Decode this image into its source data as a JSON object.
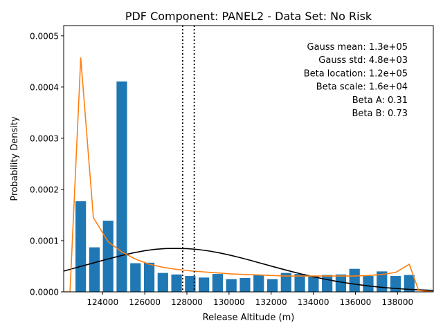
{
  "chart_data": {
    "type": "bar",
    "title": "PDF Component: PANEL2 - Data Set: No Risk",
    "xlabel": "Release Altitude (m)",
    "ylabel": "Probability Density",
    "xlim": [
      122150,
      139700
    ],
    "ylim": [
      0,
      0.00052
    ],
    "x_ticks": [
      124000,
      126000,
      128000,
      130000,
      132000,
      134000,
      136000,
      138000
    ],
    "x_tick_labels": [
      "124000",
      "126000",
      "128000",
      "130000",
      "132000",
      "134000",
      "136000",
      "138000"
    ],
    "y_ticks": [
      0,
      0.0001,
      0.0002,
      0.0003,
      0.0004,
      0.0005
    ],
    "y_tick_labels": [
      "0.0000",
      "0.0001",
      "0.0002",
      "0.0003",
      "0.0004",
      "0.0005"
    ],
    "grid": false,
    "bar_width": 500,
    "bars": {
      "x": [
        122960,
        123610,
        124260,
        124910,
        125560,
        126210,
        126860,
        127510,
        128160,
        128810,
        129460,
        130110,
        130760,
        131410,
        132060,
        132710,
        133360,
        134010,
        134660,
        135310,
        135960,
        136610,
        137260,
        137910,
        138560
      ],
      "values": [
        0.000177,
        8.7e-05,
        0.000139,
        0.000411,
        5.6e-05,
        5.7e-05,
        3.7e-05,
        3.4e-05,
        3.1e-05,
        2.8e-05,
        3.5e-05,
        2.5e-05,
        2.7e-05,
        3.3e-05,
        2.5e-05,
        3.7e-05,
        3.5e-05,
        3.1e-05,
        3.3e-05,
        3.4e-05,
        4.5e-05,
        3.1e-05,
        4e-05,
        3.1e-05,
        3.3e-05
      ],
      "color": "#1f77b4"
    },
    "series": [
      {
        "kind": "gauss",
        "color": "#000000",
        "x": [
          122150,
          122500,
          123000,
          123500,
          124000,
          124500,
          125000,
          125500,
          126000,
          126500,
          127000,
          127500,
          128000,
          128500,
          129000,
          129500,
          130000,
          130500,
          131000,
          131500,
          132000,
          132500,
          133000,
          133500,
          134000,
          134500,
          135000,
          135500,
          136000,
          136500,
          137000,
          137500,
          138000,
          138500,
          139000,
          139700
        ],
        "values": [
          4.05e-05,
          4.46e-05,
          5.02e-05,
          5.58e-05,
          6.14e-05,
          6.69e-05,
          7.2e-05,
          7.66e-05,
          8.04e-05,
          8.31e-05,
          8.46e-05,
          8.49e-05,
          8.45e-05,
          8.29e-05,
          8.02e-05,
          7.66e-05,
          7.22e-05,
          6.72e-05,
          6.18e-05,
          5.61e-05,
          5.04e-05,
          4.48e-05,
          3.94e-05,
          3.43e-05,
          2.96e-05,
          2.53e-05,
          2.14e-05,
          1.79e-05,
          1.49e-05,
          1.22e-05,
          9.9e-06,
          8e-06,
          6.4e-06,
          5e-06,
          3.9e-06,
          2.9e-06
        ]
      },
      {
        "kind": "beta",
        "color": "#ff7f0e",
        "x": [
          122150,
          122450,
          122960,
          123560,
          124260,
          124910,
          125560,
          126210,
          126860,
          127510,
          128160,
          128810,
          129460,
          130110,
          130760,
          131410,
          132060,
          132710,
          133360,
          134010,
          134660,
          135310,
          135960,
          136610,
          137260,
          137910,
          138560,
          139000,
          139700
        ],
        "values": [
          0,
          0,
          0.000457,
          0.000145,
          9.8e-05,
          7.8e-05,
          6.4e-05,
          5.4e-05,
          4.8e-05,
          4.4e-05,
          4.1e-05,
          3.9e-05,
          3.7e-05,
          3.5e-05,
          3.4e-05,
          3.3e-05,
          3.2e-05,
          3.1e-05,
          3.1e-05,
          3.1e-05,
          3.1e-05,
          3.1e-05,
          3.1e-05,
          3.2e-05,
          3.4e-05,
          3.8e-05,
          5.4e-05,
          3e-06,
          0
        ]
      }
    ],
    "vlines": {
      "x": [
        127800,
        128350
      ],
      "color": "#000000",
      "style": "dotted"
    },
    "annotations": [
      "Gauss mean: 1.3e+05",
      "Gauss std: 4.8e+03",
      "Beta location: 1.2e+05",
      "Beta scale: 1.6e+04",
      "Beta A: 0.31",
      "Beta B: 0.73"
    ]
  }
}
